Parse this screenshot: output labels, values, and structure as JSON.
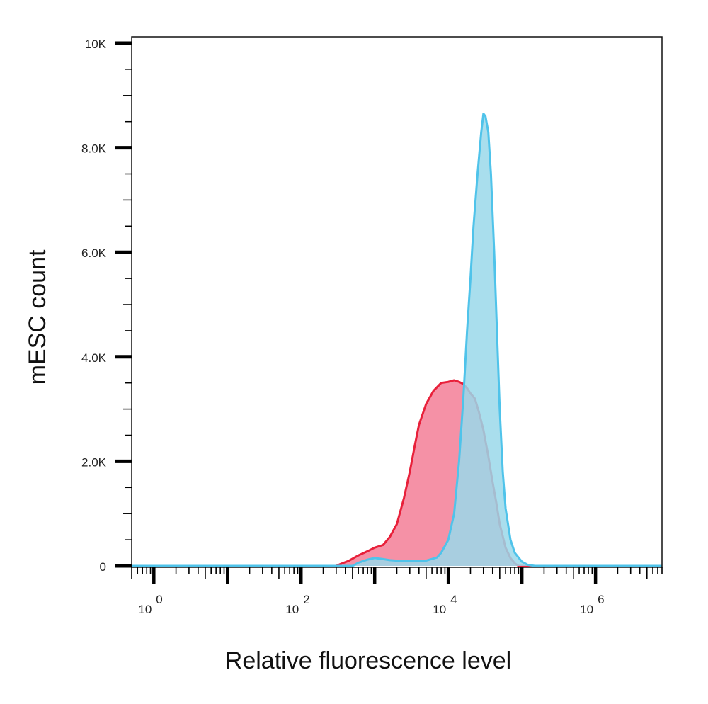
{
  "chart_data": {
    "type": "area",
    "xlabel": "Relative fluorescence level",
    "ylabel": "mESC count",
    "x_scale": "log10",
    "xlim": [
      0.5,
      8000000
    ],
    "ylim": [
      0,
      10000
    ],
    "y_ticks": [
      {
        "value": 0,
        "label": "0"
      },
      {
        "value": 2000,
        "label": "2.0K"
      },
      {
        "value": 4000,
        "label": "4.0K"
      },
      {
        "value": 6000,
        "label": "6.0K"
      },
      {
        "value": 8000,
        "label": "8.0K"
      },
      {
        "value": 10000,
        "label": "10K"
      }
    ],
    "x_ticks": [
      {
        "value": 1,
        "base": "10",
        "exp": "0"
      },
      {
        "value": 100,
        "base": "10",
        "exp": "2"
      },
      {
        "value": 10000,
        "base": "10",
        "exp": "4"
      },
      {
        "value": 1000000,
        "base": "10",
        "exp": "6"
      }
    ],
    "grid": false,
    "legend": "none",
    "series": [
      {
        "fill": "#f591a6",
        "stroke": "#e8203a",
        "points": [
          [
            0.5,
            0
          ],
          [
            300,
            0
          ],
          [
            350,
            40
          ],
          [
            450,
            100
          ],
          [
            600,
            200
          ],
          [
            800,
            280
          ],
          [
            1000,
            350
          ],
          [
            1300,
            400
          ],
          [
            1600,
            550
          ],
          [
            2000,
            800
          ],
          [
            2500,
            1300
          ],
          [
            3000,
            1800
          ],
          [
            3500,
            2300
          ],
          [
            4000,
            2700
          ],
          [
            5000,
            3100
          ],
          [
            6300,
            3350
          ],
          [
            8000,
            3500
          ],
          [
            10000,
            3520
          ],
          [
            12000,
            3550
          ],
          [
            14000,
            3520
          ],
          [
            16000,
            3480
          ],
          [
            18000,
            3400
          ],
          [
            20000,
            3300
          ],
          [
            23000,
            3200
          ],
          [
            26000,
            2950
          ],
          [
            30000,
            2600
          ],
          [
            35000,
            2100
          ],
          [
            40000,
            1600
          ],
          [
            45000,
            1200
          ],
          [
            50000,
            800
          ],
          [
            60000,
            350
          ],
          [
            70000,
            150
          ],
          [
            80000,
            50
          ],
          [
            90000,
            0
          ],
          [
            8000000,
            0
          ]
        ]
      },
      {
        "fill": "#9ad8ea",
        "stroke": "#4fc3ea",
        "points": [
          [
            0.5,
            0
          ],
          [
            500,
            0
          ],
          [
            600,
            60
          ],
          [
            800,
            120
          ],
          [
            1000,
            150
          ],
          [
            1300,
            130
          ],
          [
            1600,
            110
          ],
          [
            2000,
            100
          ],
          [
            3000,
            90
          ],
          [
            5000,
            100
          ],
          [
            7000,
            160
          ],
          [
            8000,
            250
          ],
          [
            10000,
            500
          ],
          [
            12000,
            1000
          ],
          [
            14000,
            2000
          ],
          [
            16000,
            3200
          ],
          [
            18000,
            4500
          ],
          [
            20000,
            5500
          ],
          [
            22000,
            6500
          ],
          [
            25000,
            7500
          ],
          [
            28000,
            8300
          ],
          [
            30000,
            8650
          ],
          [
            32000,
            8600
          ],
          [
            35000,
            8300
          ],
          [
            38000,
            7500
          ],
          [
            42000,
            6000
          ],
          [
            45000,
            4800
          ],
          [
            50000,
            3000
          ],
          [
            55000,
            1800
          ],
          [
            60000,
            1100
          ],
          [
            70000,
            500
          ],
          [
            80000,
            250
          ],
          [
            100000,
            80
          ],
          [
            120000,
            20
          ],
          [
            150000,
            0
          ],
          [
            8000000,
            0
          ]
        ]
      }
    ]
  }
}
